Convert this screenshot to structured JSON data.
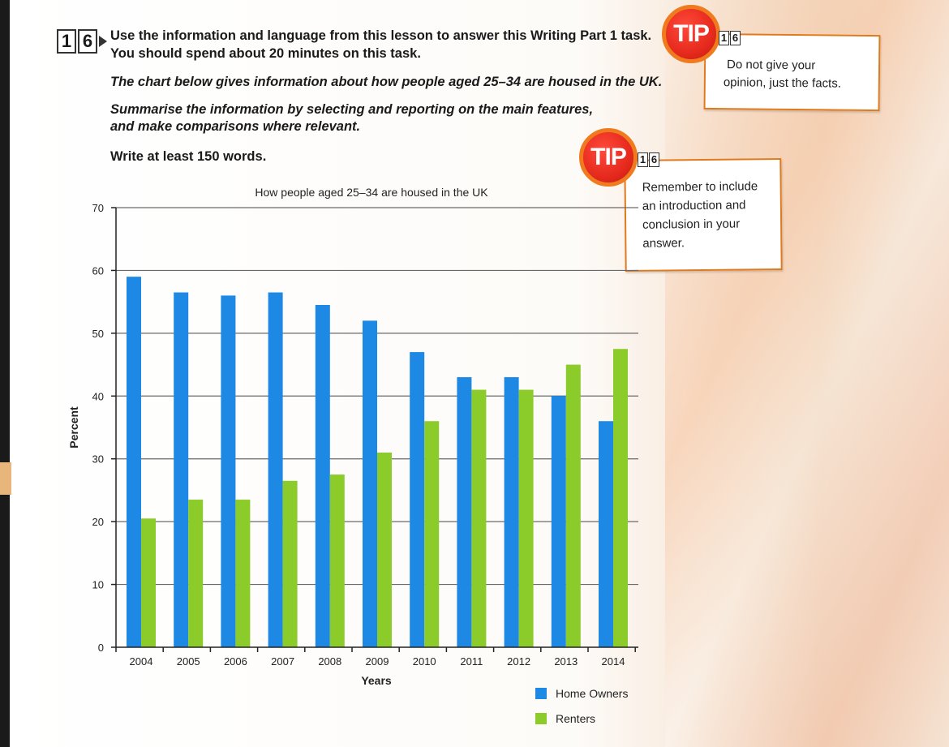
{
  "task": {
    "number_digits": [
      "1",
      "6"
    ],
    "line1": "Use the information and language from this lesson to answer this Writing Part 1 task.",
    "line2": "You should spend about 20 minutes on this task.",
    "chart_intro": "The chart below gives information about how people aged 25–34 are housed in the UK.",
    "summarise1": "Summarise the information by selecting and reporting on the main features,",
    "summarise2": "and make comparisons where relevant.",
    "word_count": "Write at least 150 words."
  },
  "tips": [
    {
      "badge": "TIP",
      "digits": [
        "1",
        "6"
      ],
      "lines": [
        "Do not give your",
        "opinion, just the facts."
      ]
    },
    {
      "badge": "TIP",
      "digits": [
        "1",
        "6"
      ],
      "lines": [
        "Remember to include",
        "an introduction and",
        "conclusion in your",
        "answer."
      ]
    }
  ],
  "colors": {
    "home_owners": "#1e88e5",
    "renters": "#8ccc2a",
    "tip_red": "#e62a1e",
    "tip_border": "#e07a1c"
  },
  "chart_data": {
    "type": "bar",
    "title": "How people aged 25–34 are housed in the UK",
    "xlabel": "Years",
    "ylabel": "Percent",
    "ylim": [
      0,
      70
    ],
    "yticks": [
      0,
      10,
      20,
      30,
      40,
      50,
      60,
      70
    ],
    "grid": true,
    "legend_position": "bottom-right",
    "categories": [
      "2004",
      "2005",
      "2006",
      "2007",
      "2008",
      "2009",
      "2010",
      "2011",
      "2012",
      "2013",
      "2014"
    ],
    "series": [
      {
        "name": "Home Owners",
        "values": [
          59,
          56.5,
          56,
          56.5,
          54.5,
          52,
          47,
          43,
          43,
          40,
          36
        ]
      },
      {
        "name": "Renters",
        "values": [
          20.5,
          23.5,
          23.5,
          26.5,
          27.5,
          31,
          36,
          41,
          41,
          45,
          47.5
        ]
      }
    ]
  }
}
